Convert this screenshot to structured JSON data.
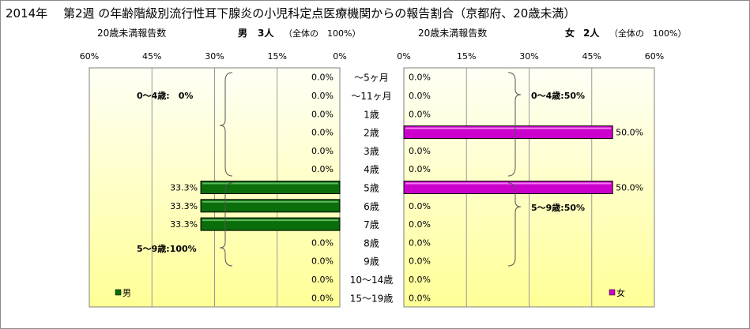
{
  "title": "2014年　 第2週 の年齢階級別流行性耳下腺炎の小児科定点医療機関からの報告割合（京都府、20歳未満）",
  "left_panel": {
    "subtitle": "20歳未満報告数",
    "gender_label": "男",
    "count_text": "3人",
    "total_text": "（全体の　100%）",
    "legend": "男",
    "annotations": [
      "0～4歳:　0%",
      "5～9歳:100%"
    ]
  },
  "right_panel": {
    "subtitle": "20歳未満報告数",
    "gender_label": "女",
    "count_text": "2人",
    "total_text": "（全体の　100%）",
    "legend": "女",
    "annotations": [
      "0～4歳:50%",
      "5～9歳:50%"
    ]
  },
  "colors": {
    "male": "#0a6e0a",
    "female": "#cc00cc",
    "bg_light": "#fffff0",
    "bg_yellow": "#ffff9c"
  },
  "chart_data": {
    "type": "bar",
    "orientation": "horizontal-back-to-back",
    "categories": [
      "～5ヶ月",
      "～11ヶ月",
      "1歳",
      "2歳",
      "3歳",
      "4歳",
      "5歳",
      "6歳",
      "7歳",
      "8歳",
      "9歳",
      "10～14歳",
      "15～19歳"
    ],
    "xlim": [
      0,
      60
    ],
    "ticks": [
      "60%",
      "45%",
      "30%",
      "15%",
      "0%"
    ],
    "ticks_right": [
      "0%",
      "15%",
      "30%",
      "45%",
      "60%"
    ],
    "series": [
      {
        "name": "男",
        "values": [
          0,
          0,
          0,
          0,
          0,
          0,
          33.3,
          33.3,
          33.3,
          0,
          0,
          0,
          0
        ],
        "labels": [
          "0.0%",
          "0.0%",
          "0.0%",
          "0.0%",
          "0.0%",
          "0.0%",
          "33.3%",
          "33.3%",
          "33.3%",
          "0.0%",
          "0.0%",
          "0.0%",
          "0.0%"
        ]
      },
      {
        "name": "女",
        "values": [
          0,
          0,
          0,
          50,
          0,
          0,
          50,
          0,
          0,
          0,
          0,
          0,
          0
        ],
        "labels": [
          "0.0%",
          "0.0%",
          "0.0%",
          "50.0%",
          "0.0%",
          "0.0%",
          "50.0%",
          "0.0%",
          "0.0%",
          "0.0%",
          "0.0%",
          "0.0%",
          "0.0%"
        ]
      }
    ]
  }
}
